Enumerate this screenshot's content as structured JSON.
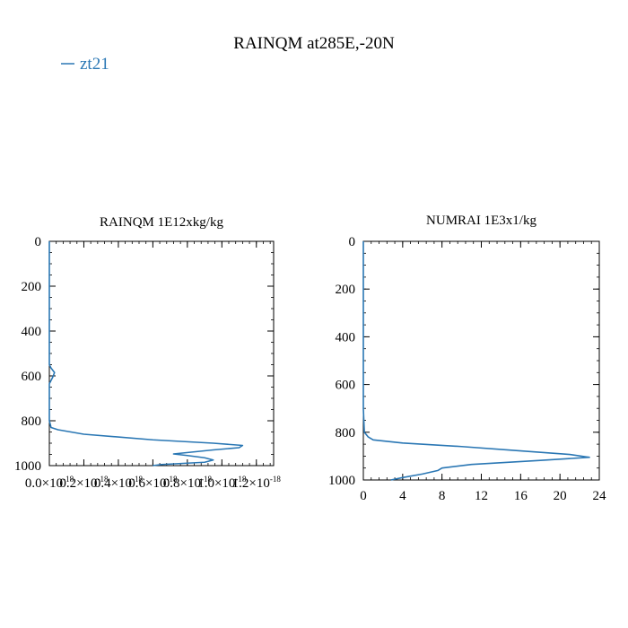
{
  "figure": {
    "title": "RAINQM at285E,-20N",
    "legend": [
      {
        "label": "zt21",
        "color": "#2a77b4"
      }
    ]
  },
  "chart_data": [
    {
      "type": "line",
      "title": "RAINQM  1E12xkg/kg",
      "xlim": [
        0,
        1.3e-18
      ],
      "ylim": [
        1000,
        0
      ],
      "xticks": [
        0,
        2e-19,
        4e-19,
        6e-19,
        8e-19,
        1e-18,
        1.2e-18
      ],
      "xticklabels": [
        "0.0×10-18",
        "0.2×10-18",
        "0.4×10-18",
        "0.6×10-18",
        "0.8×10-18",
        "1.0×10-18",
        "1.2×10-18"
      ],
      "yticks": [
        0,
        200,
        400,
        600,
        800,
        1000
      ],
      "yticklabels": [
        "0",
        "200",
        "400",
        "600",
        "800",
        "1000"
      ],
      "series": [
        {
          "name": "zt21",
          "color": "#2a77b4",
          "x": [
            0,
            0,
            1e-20,
            3e-20,
            2e-20,
            0,
            0,
            0,
            1e-20,
            5e-20,
            2e-19,
            6e-19,
            9.5e-19,
            1.12e-18,
            1.1e-18,
            9.5e-19,
            7.2e-19,
            8e-19,
            9e-19,
            9.5e-19,
            9e-19,
            6.5e-19,
            6e-19
          ],
          "y": [
            0,
            550,
            565,
            585,
            605,
            635,
            700,
            800,
            830,
            840,
            860,
            885,
            900,
            910,
            920,
            930,
            948,
            955,
            965,
            975,
            985,
            995,
            1000
          ]
        }
      ]
    },
    {
      "type": "line",
      "title": "NUMRAI  1E3x1/kg",
      "xlim": [
        0,
        24
      ],
      "ylim": [
        1000,
        0
      ],
      "xticks": [
        0,
        4,
        8,
        12,
        16,
        20,
        24
      ],
      "xticklabels": [
        "0",
        "4",
        "8",
        "12",
        "16",
        "20",
        "24"
      ],
      "yticks": [
        0,
        200,
        400,
        600,
        800,
        1000
      ],
      "yticklabels": [
        "0",
        "200",
        "400",
        "600",
        "800",
        "1000"
      ],
      "series": [
        {
          "name": "zt21",
          "color": "#2a77b4",
          "x": [
            0,
            0,
            0.1,
            0.5,
            1.0,
            4.0,
            10,
            16,
            21,
            23,
            18,
            11,
            8,
            7.6,
            6,
            4,
            2.8
          ],
          "y": [
            0,
            700,
            800,
            820,
            832,
            845,
            860,
            878,
            893,
            905,
            918,
            935,
            950,
            960,
            975,
            990,
            1000
          ]
        }
      ]
    }
  ]
}
